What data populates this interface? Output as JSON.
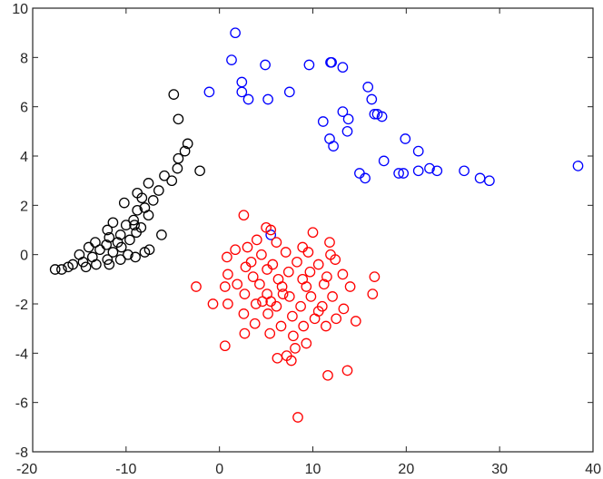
{
  "chart_data": {
    "type": "scatter",
    "title": "",
    "xlabel": "",
    "ylabel": "",
    "xlim": [
      -20,
      40
    ],
    "ylim": [
      -8,
      10
    ],
    "grid": false,
    "legend": "none",
    "x_ticks": [
      "-20",
      "-10",
      "0",
      "10",
      "20",
      "30",
      "40"
    ],
    "y_ticks": [
      "-8",
      "-6",
      "-4",
      "-2",
      "0",
      "2",
      "4",
      "6",
      "8",
      "10"
    ],
    "marker": "open-circle",
    "series": [
      {
        "color": "#0000ff",
        "points": [
          [
            1.7,
            9.0
          ],
          [
            1.3,
            7.9
          ],
          [
            4.9,
            7.7
          ],
          [
            11.9,
            7.8
          ],
          [
            12.0,
            7.8
          ],
          [
            13.2,
            7.6
          ],
          [
            9.6,
            7.7
          ],
          [
            2.4,
            7.0
          ],
          [
            -1.1,
            6.6
          ],
          [
            2.4,
            6.6
          ],
          [
            3.1,
            6.3
          ],
          [
            5.2,
            6.3
          ],
          [
            7.5,
            6.6
          ],
          [
            15.9,
            6.8
          ],
          [
            16.3,
            6.3
          ],
          [
            16.6,
            5.7
          ],
          [
            16.9,
            5.7
          ],
          [
            17.4,
            5.6
          ],
          [
            11.1,
            5.4
          ],
          [
            13.2,
            5.8
          ],
          [
            13.8,
            5.5
          ],
          [
            13.7,
            5.0
          ],
          [
            11.8,
            4.7
          ],
          [
            12.2,
            4.4
          ],
          [
            19.9,
            4.7
          ],
          [
            21.3,
            4.2
          ],
          [
            17.6,
            3.8
          ],
          [
            15.0,
            3.3
          ],
          [
            15.6,
            3.1
          ],
          [
            19.2,
            3.3
          ],
          [
            19.7,
            3.3
          ],
          [
            21.3,
            3.4
          ],
          [
            22.5,
            3.5
          ],
          [
            23.3,
            3.4
          ],
          [
            26.2,
            3.4
          ],
          [
            27.9,
            3.1
          ],
          [
            28.9,
            3.0
          ],
          [
            38.4,
            3.6
          ],
          [
            5.5,
            0.8
          ]
        ]
      },
      {
        "color": "#000000",
        "points": [
          [
            -4.9,
            6.5
          ],
          [
            -4.4,
            5.5
          ],
          [
            -3.4,
            4.5
          ],
          [
            -3.7,
            4.2
          ],
          [
            -4.4,
            3.9
          ],
          [
            -4.5,
            3.5
          ],
          [
            -2.1,
            3.4
          ],
          [
            -5.9,
            3.2
          ],
          [
            -5.1,
            3.0
          ],
          [
            -7.6,
            2.9
          ],
          [
            -6.5,
            2.6
          ],
          [
            -8.8,
            2.5
          ],
          [
            -8.3,
            2.3
          ],
          [
            -7.1,
            2.2
          ],
          [
            -10.2,
            2.1
          ],
          [
            -8.0,
            1.9
          ],
          [
            -8.8,
            1.8
          ],
          [
            -7.6,
            1.6
          ],
          [
            -9.2,
            1.4
          ],
          [
            -11.4,
            1.3
          ],
          [
            -10.0,
            1.2
          ],
          [
            -9.1,
            1.2
          ],
          [
            -8.4,
            1.1
          ],
          [
            -12.0,
            1.0
          ],
          [
            -10.6,
            0.8
          ],
          [
            -11.8,
            0.7
          ],
          [
            -9.6,
            0.6
          ],
          [
            -6.2,
            0.8
          ],
          [
            -13.3,
            0.5
          ],
          [
            -12.1,
            0.4
          ],
          [
            -10.5,
            0.3
          ],
          [
            -14.0,
            0.3
          ],
          [
            -12.8,
            0.2
          ],
          [
            -11.4,
            0.1
          ],
          [
            -9.8,
            0.0
          ],
          [
            -8.0,
            0.1
          ],
          [
            -15.0,
            0.0
          ],
          [
            -13.6,
            -0.1
          ],
          [
            -12.0,
            -0.2
          ],
          [
            -10.6,
            -0.2
          ],
          [
            -14.6,
            -0.3
          ],
          [
            -13.2,
            -0.4
          ],
          [
            -11.8,
            -0.4
          ],
          [
            -15.7,
            -0.4
          ],
          [
            -14.3,
            -0.5
          ],
          [
            -16.2,
            -0.5
          ],
          [
            -16.9,
            -0.6
          ],
          [
            -17.6,
            -0.6
          ],
          [
            -9.0,
            -0.1
          ],
          [
            -7.5,
            0.2
          ],
          [
            -10.9,
            0.5
          ],
          [
            -8.9,
            0.9
          ]
        ]
      },
      {
        "color": "#ff0000",
        "points": [
          [
            2.6,
            1.6
          ],
          [
            5.0,
            1.1
          ],
          [
            5.5,
            1.0
          ],
          [
            10.0,
            0.9
          ],
          [
            4.0,
            0.6
          ],
          [
            6.1,
            0.5
          ],
          [
            3.0,
            0.3
          ],
          [
            8.9,
            0.3
          ],
          [
            11.8,
            0.5
          ],
          [
            1.7,
            0.2
          ],
          [
            4.5,
            0.0
          ],
          [
            7.1,
            0.1
          ],
          [
            9.5,
            0.1
          ],
          [
            11.9,
            0.0
          ],
          [
            0.8,
            -0.1
          ],
          [
            3.4,
            -0.3
          ],
          [
            5.7,
            -0.4
          ],
          [
            8.3,
            -0.3
          ],
          [
            10.6,
            -0.4
          ],
          [
            12.4,
            -0.2
          ],
          [
            2.8,
            -0.5
          ],
          [
            5.1,
            -0.6
          ],
          [
            7.4,
            -0.7
          ],
          [
            9.7,
            -0.7
          ],
          [
            0.9,
            -0.8
          ],
          [
            3.6,
            -0.9
          ],
          [
            6.3,
            -1.0
          ],
          [
            8.9,
            -1.0
          ],
          [
            11.5,
            -0.9
          ],
          [
            13.2,
            -0.8
          ],
          [
            16.6,
            -0.9
          ],
          [
            1.9,
            -1.2
          ],
          [
            4.3,
            -1.2
          ],
          [
            6.7,
            -1.3
          ],
          [
            9.3,
            -1.3
          ],
          [
            11.2,
            -1.2
          ],
          [
            -2.5,
            -1.3
          ],
          [
            0.6,
            -1.3
          ],
          [
            14.0,
            -1.3
          ],
          [
            16.4,
            -1.6
          ],
          [
            2.7,
            -1.6
          ],
          [
            5.1,
            -1.6
          ],
          [
            7.5,
            -1.7
          ],
          [
            9.8,
            -1.7
          ],
          [
            12.1,
            -1.7
          ],
          [
            0.9,
            -2.0
          ],
          [
            3.9,
            -2.0
          ],
          [
            6.1,
            -2.1
          ],
          [
            8.7,
            -2.1
          ],
          [
            11.0,
            -2.1
          ],
          [
            13.3,
            -2.2
          ],
          [
            -0.7,
            -2.0
          ],
          [
            2.6,
            -2.4
          ],
          [
            5.2,
            -2.4
          ],
          [
            7.8,
            -2.5
          ],
          [
            10.2,
            -2.6
          ],
          [
            12.5,
            -2.6
          ],
          [
            14.6,
            -2.7
          ],
          [
            3.8,
            -2.8
          ],
          [
            6.6,
            -2.9
          ],
          [
            9.0,
            -2.9
          ],
          [
            11.4,
            -2.9
          ],
          [
            2.7,
            -3.2
          ],
          [
            5.4,
            -3.2
          ],
          [
            7.9,
            -3.3
          ],
          [
            9.3,
            -3.6
          ],
          [
            0.6,
            -3.7
          ],
          [
            8.1,
            -3.8
          ],
          [
            7.2,
            -4.1
          ],
          [
            6.2,
            -4.2
          ],
          [
            7.7,
            -4.3
          ],
          [
            13.7,
            -4.7
          ],
          [
            11.6,
            -4.9
          ],
          [
            8.4,
            -6.6
          ],
          [
            5.5,
            -1.9
          ],
          [
            6.8,
            -1.6
          ],
          [
            4.6,
            -1.9
          ],
          [
            10.6,
            -2.3
          ]
        ]
      }
    ]
  }
}
